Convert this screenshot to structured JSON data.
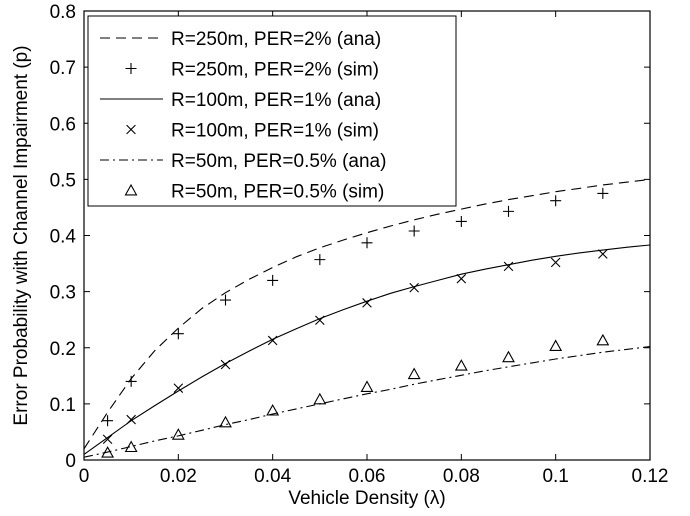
{
  "chart_data": {
    "type": "line",
    "title": "",
    "xlabel": "Vehicle Density (λ)",
    "ylabel": "Error Probability with Channel Impairment (p)",
    "xlim": [
      0,
      0.12
    ],
    "ylim": [
      0,
      0.8
    ],
    "x_ticks": [
      0,
      0.02,
      0.04,
      0.06,
      0.08,
      0.1,
      0.12
    ],
    "x_tick_labels": [
      "0",
      "0.02",
      "0.04",
      "0.06",
      "0.08",
      "0.1",
      "0.12"
    ],
    "y_ticks": [
      0,
      0.1,
      0.2,
      0.3,
      0.4,
      0.5,
      0.6,
      0.7,
      0.8
    ],
    "y_tick_labels": [
      "0",
      "0.1",
      "0.2",
      "0.3",
      "0.4",
      "0.5",
      "0.6",
      "0.7",
      "0.8"
    ],
    "grid": false,
    "legend_position": "top-left",
    "series": [
      {
        "name": "R=250m, PER=2% (ana)",
        "style": "dashed",
        "x": [
          0.0,
          0.005,
          0.01,
          0.015,
          0.02,
          0.025,
          0.03,
          0.035,
          0.04,
          0.045,
          0.05,
          0.055,
          0.06,
          0.065,
          0.07,
          0.075,
          0.08,
          0.085,
          0.09,
          0.095,
          0.1,
          0.105,
          0.11,
          0.115,
          0.12
        ],
        "y": [
          0.02,
          0.085,
          0.145,
          0.195,
          0.235,
          0.27,
          0.298,
          0.322,
          0.343,
          0.362,
          0.378,
          0.392,
          0.405,
          0.417,
          0.428,
          0.438,
          0.447,
          0.456,
          0.464,
          0.471,
          0.478,
          0.484,
          0.49,
          0.495,
          0.5
        ]
      },
      {
        "name": "R=250m, PER=2% (sim)",
        "style": "marker-plus",
        "x": [
          0.005,
          0.01,
          0.02,
          0.03,
          0.04,
          0.05,
          0.06,
          0.07,
          0.08,
          0.09,
          0.1,
          0.11
        ],
        "y": [
          0.07,
          0.14,
          0.225,
          0.285,
          0.32,
          0.357,
          0.387,
          0.408,
          0.425,
          0.443,
          0.462,
          0.475
        ]
      },
      {
        "name": "R=100m, PER=1% (ana)",
        "style": "solid",
        "x": [
          0.0,
          0.005,
          0.01,
          0.015,
          0.02,
          0.025,
          0.03,
          0.035,
          0.04,
          0.045,
          0.05,
          0.055,
          0.06,
          0.065,
          0.07,
          0.075,
          0.08,
          0.085,
          0.09,
          0.095,
          0.1,
          0.105,
          0.11,
          0.115,
          0.12
        ],
        "y": [
          0.01,
          0.04,
          0.07,
          0.097,
          0.123,
          0.148,
          0.172,
          0.194,
          0.215,
          0.234,
          0.252,
          0.268,
          0.283,
          0.297,
          0.309,
          0.32,
          0.331,
          0.34,
          0.348,
          0.356,
          0.363,
          0.369,
          0.374,
          0.379,
          0.383
        ]
      },
      {
        "name": "R=100m, PER=1% (sim)",
        "style": "marker-x",
        "x": [
          0.005,
          0.01,
          0.02,
          0.03,
          0.04,
          0.05,
          0.06,
          0.07,
          0.08,
          0.09,
          0.1,
          0.11
        ],
        "y": [
          0.037,
          0.072,
          0.128,
          0.17,
          0.213,
          0.249,
          0.28,
          0.307,
          0.323,
          0.345,
          0.352,
          0.367
        ]
      },
      {
        "name": "R=50m, PER=0.5% (ana)",
        "style": "dashdot",
        "x": [
          0.0,
          0.005,
          0.01,
          0.015,
          0.02,
          0.025,
          0.03,
          0.035,
          0.04,
          0.045,
          0.05,
          0.055,
          0.06,
          0.065,
          0.07,
          0.075,
          0.08,
          0.085,
          0.09,
          0.095,
          0.1,
          0.105,
          0.11,
          0.115,
          0.12
        ],
        "y": [
          0.005,
          0.014,
          0.024,
          0.034,
          0.043,
          0.053,
          0.063,
          0.072,
          0.082,
          0.091,
          0.1,
          0.109,
          0.118,
          0.126,
          0.135,
          0.143,
          0.151,
          0.159,
          0.166,
          0.173,
          0.18,
          0.186,
          0.192,
          0.197,
          0.202
        ]
      },
      {
        "name": "R=50m, PER=0.5% (sim)",
        "style": "marker-triangle",
        "x": [
          0.005,
          0.01,
          0.02,
          0.03,
          0.04,
          0.05,
          0.06,
          0.07,
          0.08,
          0.09,
          0.1,
          0.11
        ],
        "y": [
          0.013,
          0.023,
          0.045,
          0.067,
          0.088,
          0.108,
          0.13,
          0.153,
          0.168,
          0.183,
          0.203,
          0.213
        ]
      }
    ]
  }
}
